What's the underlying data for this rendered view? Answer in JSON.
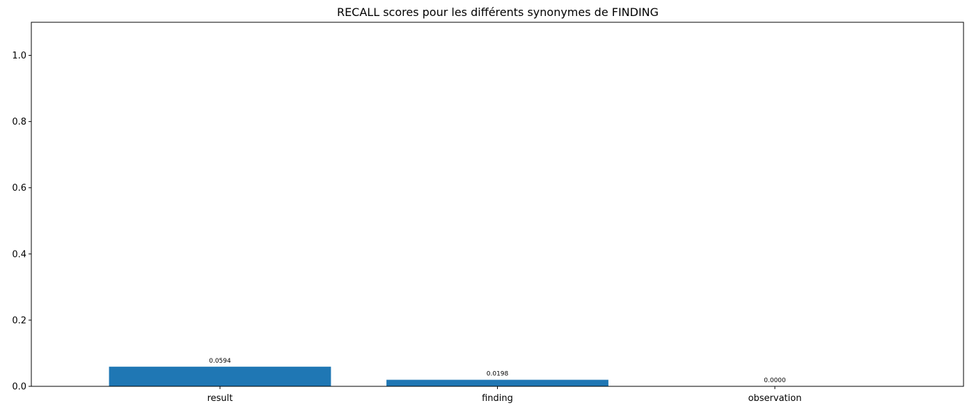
{
  "chart_data": {
    "type": "bar",
    "title": "RECALL scores pour les différents synonymes de FINDING",
    "xlabel": "",
    "ylabel": "",
    "categories": [
      "result",
      "finding",
      "observation"
    ],
    "values": [
      0.0594,
      0.0198,
      0.0
    ],
    "data_labels": [
      "0.0594",
      "0.0198",
      "0.0000"
    ],
    "ylim": [
      0,
      1.1
    ],
    "yticks": [
      0.0,
      0.2,
      0.4,
      0.6,
      0.8,
      1.0
    ],
    "ytick_labels": [
      "0.0",
      "0.2",
      "0.4",
      "0.6",
      "0.8",
      "1.0"
    ],
    "grid": false,
    "legend": "none",
    "bar_color": "#1f77b4"
  }
}
